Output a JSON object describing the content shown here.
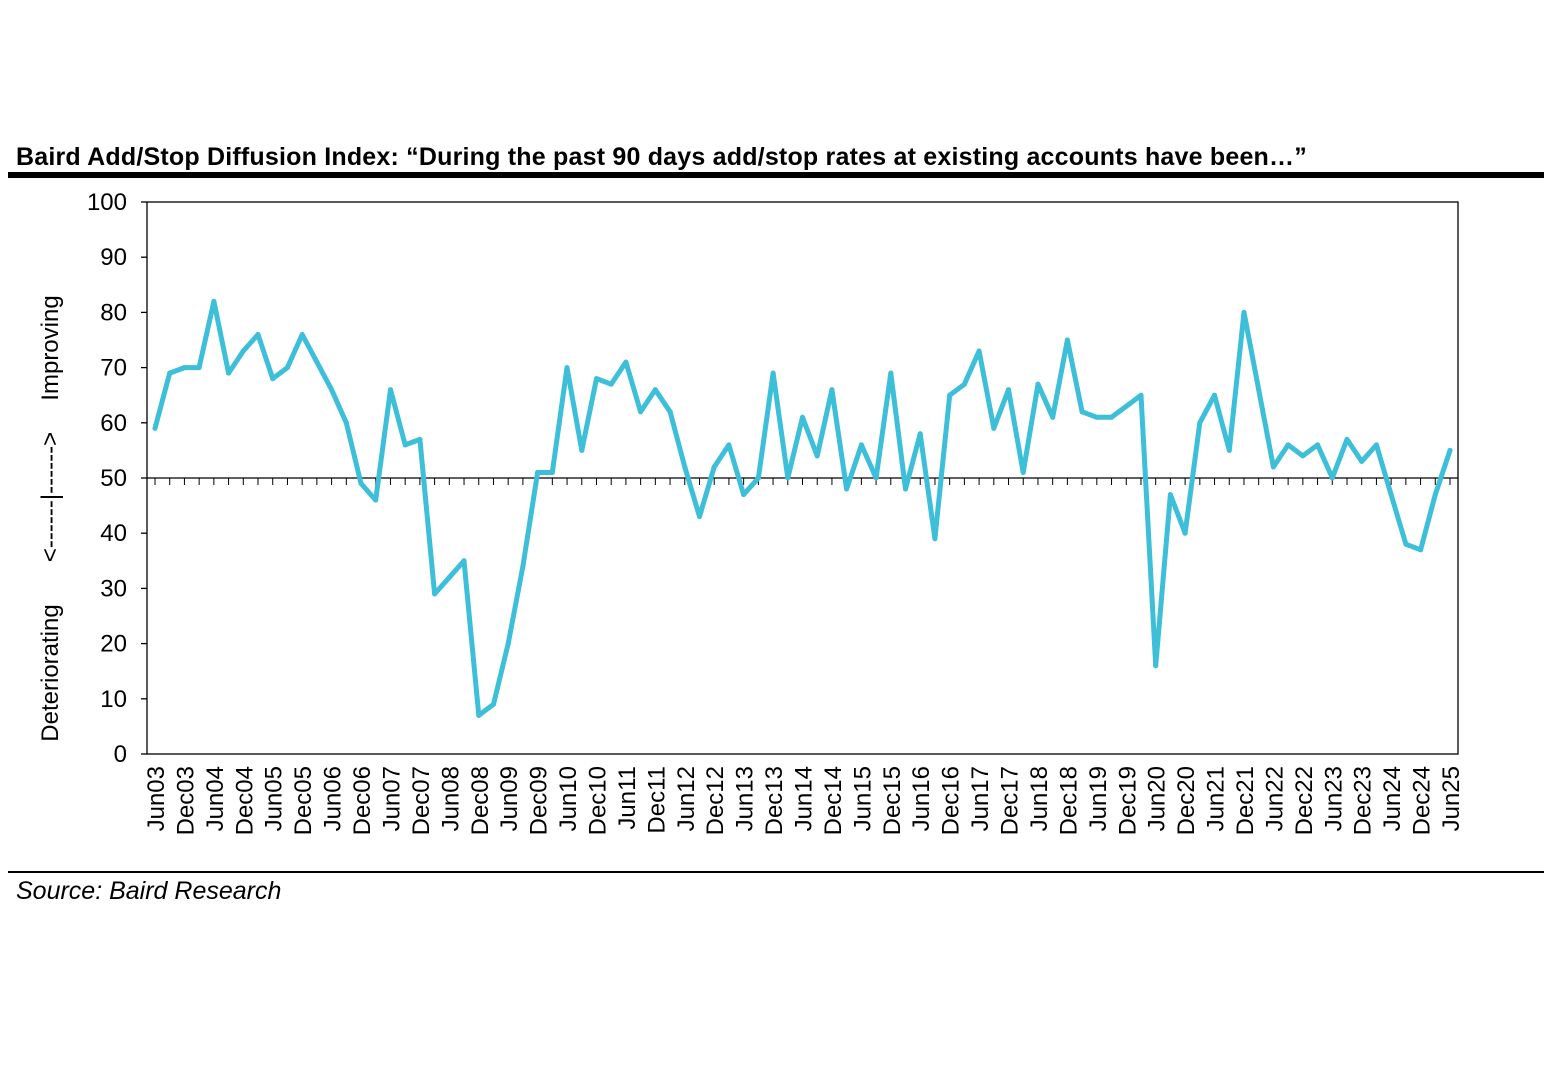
{
  "title": "Baird Add/Stop Diffusion Index: “During the past 90 days add/stop rates at existing accounts have been…”",
  "source": "Source: Baird Research",
  "chart_data": {
    "type": "line",
    "title": "Baird Add/Stop Diffusion Index: “During the past 90 days add/stop rates at existing accounts have been…”",
    "ylabel_top": "Improving",
    "ylabel_mid": "<------|------>",
    "ylabel_bottom": "Deteriorating",
    "ylim": [
      0,
      100
    ],
    "yticks": [
      0,
      10,
      20,
      30,
      40,
      50,
      60,
      70,
      80,
      90,
      100
    ],
    "reference_line": 50,
    "grid": false,
    "line_color": "#3DBFD9",
    "xlabels": [
      "Jun03",
      "Dec03",
      "Jun04",
      "Dec04",
      "Jun05",
      "Dec05",
      "Jun06",
      "Dec06",
      "Jun07",
      "Dec07",
      "Jun08",
      "Dec08",
      "Jun09",
      "Dec09",
      "Jun10",
      "Dec10",
      "Jun11",
      "Dec11",
      "Jun12",
      "Dec12",
      "Jun13",
      "Dec13",
      "Jun14",
      "Dec14",
      "Jun15",
      "Dec15",
      "Jun16",
      "Dec16",
      "Jun17",
      "Dec17",
      "Jun18",
      "Dec18",
      "Jun19",
      "Dec19",
      "Jun20",
      "Dec20",
      "Jun21",
      "Dec21",
      "Jun22",
      "Dec22",
      "Jun23",
      "Dec23",
      "Jun24",
      "Dec24",
      "Jun25"
    ],
    "values": [
      59,
      69,
      70,
      70,
      82,
      69,
      73,
      76,
      68,
      70,
      76,
      71,
      66,
      60,
      49,
      46,
      66,
      56,
      57,
      29,
      32,
      35,
      7,
      9,
      20,
      34,
      51,
      51,
      70,
      55,
      68,
      67,
      71,
      62,
      66,
      62,
      52,
      43,
      52,
      56,
      47,
      50,
      69,
      50,
      61,
      54,
      66,
      48,
      56,
      50,
      69,
      48,
      58,
      39,
      65,
      67,
      73,
      59,
      66,
      51,
      67,
      61,
      75,
      62,
      61,
      61,
      63,
      65,
      16,
      47,
      40,
      60,
      65,
      55,
      80,
      66,
      52,
      56,
      54,
      56,
      50,
      57,
      53,
      56,
      47,
      38,
      37,
      47,
      55
    ]
  }
}
